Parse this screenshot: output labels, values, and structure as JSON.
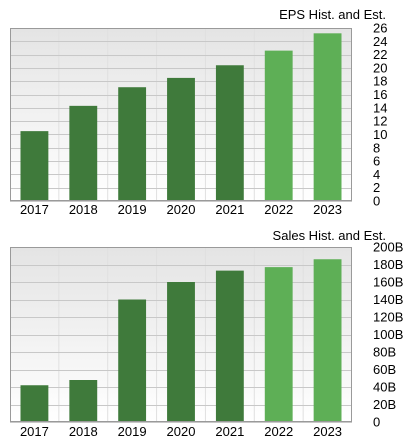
{
  "chart_data": [
    {
      "type": "bar",
      "title": "EPS Hist. and Est.",
      "categories": [
        "2017",
        "2018",
        "2019",
        "2020",
        "2021",
        "2022",
        "2023"
      ],
      "values": [
        10.5,
        14.3,
        17.1,
        18.5,
        20.4,
        22.6,
        25.2
      ],
      "estimated": [
        false,
        false,
        false,
        false,
        false,
        true,
        true
      ],
      "ylim": [
        0,
        26
      ],
      "yticks": [
        "0",
        "2",
        "4",
        "6",
        "8",
        "10",
        "12",
        "14",
        "16",
        "18",
        "20",
        "22",
        "24",
        "26"
      ],
      "ytick_values": [
        0,
        2,
        4,
        6,
        8,
        10,
        12,
        14,
        16,
        18,
        20,
        22,
        24,
        26
      ],
      "xlabel": "",
      "ylabel": "",
      "grid": true,
      "axis_side": "right"
    },
    {
      "type": "bar",
      "title": "Sales Hist. and Est.",
      "categories": [
        "2017",
        "2018",
        "2019",
        "2020",
        "2021",
        "2022",
        "2023"
      ],
      "values": [
        42,
        48,
        140,
        160,
        173,
        177,
        186
      ],
      "estimated": [
        false,
        false,
        false,
        false,
        false,
        true,
        true
      ],
      "unit": "B",
      "ylim": [
        0,
        200
      ],
      "yticks": [
        "0",
        "20B",
        "40B",
        "60B",
        "80B",
        "100B",
        "120B",
        "140B",
        "160B",
        "180B",
        "200B"
      ],
      "ytick_values": [
        0,
        20,
        40,
        60,
        80,
        100,
        120,
        140,
        160,
        180,
        200
      ],
      "xlabel": "",
      "ylabel": "",
      "grid": true,
      "axis_side": "right"
    }
  ],
  "colors": {
    "historical": "#3f7a3b",
    "estimate": "#5eaf56",
    "plot_top": "#e4e4e4",
    "plot_bottom": "#ffffff",
    "grid": "#c8c8c8",
    "vgrid": "#e0e0e0",
    "frame": "#9a9a9a"
  }
}
